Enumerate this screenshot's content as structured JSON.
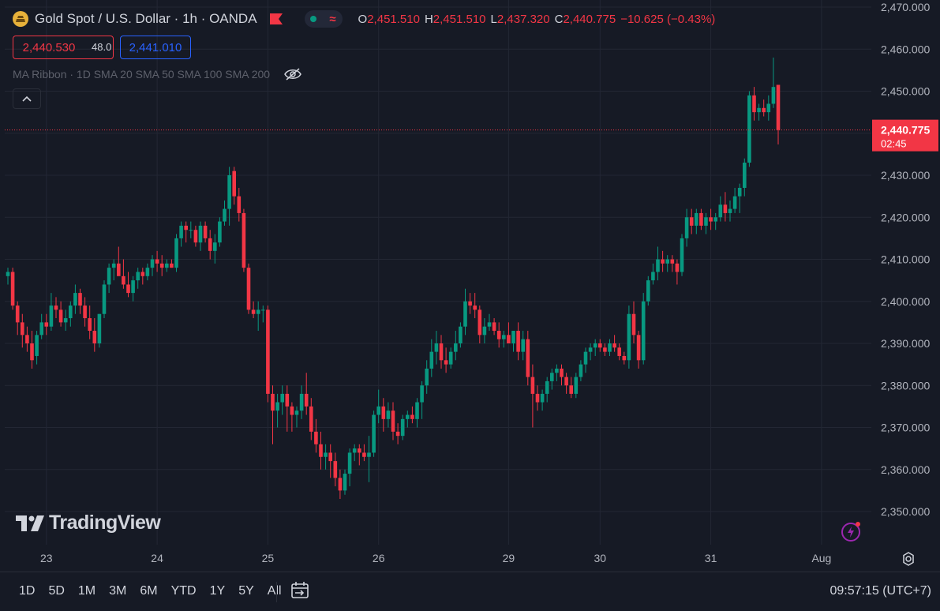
{
  "header": {
    "symbol_title": "Gold Spot / U.S. Dollar · 1h · OANDA",
    "ohlc": {
      "o_label": "O",
      "o_value": "2,451.510",
      "h_label": "H",
      "h_value": "2,451.510",
      "l_label": "L",
      "l_value": "2,437.320",
      "c_label": "C",
      "c_value": "2,440.775",
      "change": "−10.625 (−0.43%)"
    }
  },
  "trade": {
    "sell_price": "2,440.530",
    "spread": "48.0",
    "buy_price": "2,441.010"
  },
  "indicator": {
    "label": "MA Ribbon · 1D SMA 20 SMA 50 SMA 100 SMA 200"
  },
  "branding": {
    "logo_text": "TradingView"
  },
  "current_price": {
    "value": "2,440.775",
    "countdown": "02:45"
  },
  "toolbar": {
    "ranges": [
      "1D",
      "5D",
      "1M",
      "3M",
      "6M",
      "YTD",
      "1Y",
      "5Y",
      "All"
    ],
    "clock": "09:57:15 (UTC+7)"
  },
  "colors": {
    "background": "#161a25",
    "up": "#089981",
    "down": "#f23645",
    "grid": "#232734",
    "text": "#d1d4dc",
    "accent_buy": "#2962ff"
  },
  "chart_data": {
    "type": "candlestick",
    "title": "Gold Spot / U.S. Dollar · 1h · OANDA",
    "xlabel": "",
    "ylabel": "",
    "ylim": [
      2346,
      2471
    ],
    "y_ticks": [
      2470,
      2460,
      2450,
      2440,
      2430,
      2420,
      2410,
      2400,
      2390,
      2380,
      2370,
      2360,
      2350
    ],
    "y_tick_labels": [
      "2,470.000",
      "2,460.000",
      "2,450.000",
      "2,440.000",
      "2,430.000",
      "2,420.000",
      "2,410.000",
      "2,400.000",
      "2,390.000",
      "2,380.000",
      "2,370.000",
      "2,360.000",
      "2,350.000"
    ],
    "x_tick_labels": [
      {
        "label": "23",
        "bar": 8
      },
      {
        "label": "24",
        "bar": 31
      },
      {
        "label": "25",
        "bar": 54
      },
      {
        "label": "26",
        "bar": 77
      },
      {
        "label": "29",
        "bar": 104
      },
      {
        "label": "30",
        "bar": 123
      },
      {
        "label": "31",
        "bar": 146
      },
      {
        "label": "Aug",
        "bar": 169
      }
    ],
    "last_price": 2440.775,
    "grid": true,
    "series": [
      {
        "ohlc": [
          [
            2406,
            2408,
            2404,
            2407
          ],
          [
            2407,
            2408,
            2398,
            2399
          ],
          [
            2399,
            2400,
            2392,
            2395
          ],
          [
            2395,
            2397,
            2389,
            2392
          ],
          [
            2392,
            2394,
            2388,
            2390
          ],
          [
            2390,
            2393,
            2384,
            2386
          ],
          [
            2387,
            2393,
            2385,
            2392
          ],
          [
            2392,
            2397,
            2391,
            2395
          ],
          [
            2395,
            2397,
            2392,
            2394
          ],
          [
            2394,
            2402,
            2393,
            2399
          ],
          [
            2399,
            2401,
            2396,
            2398
          ],
          [
            2398,
            2400,
            2394,
            2395
          ],
          [
            2395,
            2398,
            2393,
            2396
          ],
          [
            2396,
            2400,
            2394,
            2399
          ],
          [
            2399,
            2404,
            2397,
            2402
          ],
          [
            2402,
            2403,
            2397,
            2399
          ],
          [
            2399,
            2401,
            2394,
            2396
          ],
          [
            2396,
            2399,
            2391,
            2393
          ],
          [
            2393,
            2396,
            2388,
            2390
          ],
          [
            2390,
            2397,
            2389,
            2397
          ],
          [
            2397,
            2405,
            2396,
            2404
          ],
          [
            2404,
            2409,
            2402,
            2408
          ],
          [
            2408,
            2410,
            2405,
            2409
          ],
          [
            2409,
            2413,
            2407,
            2406
          ],
          [
            2406,
            2410,
            2403,
            2404
          ],
          [
            2404,
            2407,
            2401,
            2402
          ],
          [
            2402,
            2406,
            2400,
            2405
          ],
          [
            2405,
            2408,
            2403,
            2407
          ],
          [
            2407,
            2408,
            2404,
            2406
          ],
          [
            2406,
            2409,
            2405,
            2408
          ],
          [
            2408,
            2411,
            2406,
            2410
          ],
          [
            2410,
            2412,
            2407,
            2409
          ],
          [
            2409,
            2411,
            2406,
            2408
          ],
          [
            2408,
            2410,
            2407,
            2409
          ],
          [
            2409,
            2410,
            2408,
            2408
          ],
          [
            2408,
            2416,
            2407,
            2415
          ],
          [
            2415,
            2419,
            2413,
            2418
          ],
          [
            2418,
            2419,
            2414,
            2417
          ],
          [
            2417,
            2419,
            2415,
            2417
          ],
          [
            2417,
            2418,
            2413,
            2414
          ],
          [
            2414,
            2419,
            2412,
            2418
          ],
          [
            2418,
            2419,
            2414,
            2415
          ],
          [
            2415,
            2417,
            2410,
            2412
          ],
          [
            2412,
            2416,
            2409,
            2414
          ],
          [
            2414,
            2420,
            2413,
            2419
          ],
          [
            2419,
            2424,
            2418,
            2422
          ],
          [
            2422,
            2432,
            2418,
            2430
          ],
          [
            2431,
            2432,
            2423,
            2425
          ],
          [
            2425,
            2427,
            2419,
            2421
          ],
          [
            2421,
            2422,
            2407,
            2408
          ],
          [
            2408,
            2409,
            2397,
            2398
          ],
          [
            2398,
            2400,
            2396,
            2397
          ],
          [
            2397,
            2400,
            2393,
            2398
          ],
          [
            2398,
            2399,
            2395,
            2398
          ],
          [
            2398,
            2399,
            2376,
            2378
          ],
          [
            2378,
            2380,
            2366,
            2374
          ],
          [
            2374,
            2378,
            2370,
            2376
          ],
          [
            2376,
            2380,
            2373,
            2378
          ],
          [
            2378,
            2380,
            2369,
            2375
          ],
          [
            2375,
            2376,
            2369,
            2373
          ],
          [
            2373,
            2375,
            2370,
            2374
          ],
          [
            2374,
            2380,
            2372,
            2378
          ],
          [
            2378,
            2383,
            2373,
            2375
          ],
          [
            2375,
            2377,
            2367,
            2369
          ],
          [
            2369,
            2372,
            2364,
            2366
          ],
          [
            2366,
            2369,
            2360,
            2363
          ],
          [
            2363,
            2366,
            2360,
            2364
          ],
          [
            2364,
            2366,
            2358,
            2362
          ],
          [
            2362,
            2364,
            2356,
            2358
          ],
          [
            2358,
            2360,
            2353,
            2355
          ],
          [
            2355,
            2360,
            2354,
            2359
          ],
          [
            2359,
            2365,
            2356,
            2364
          ],
          [
            2364,
            2366,
            2362,
            2365
          ],
          [
            2365,
            2366,
            2361,
            2364
          ],
          [
            2364,
            2366,
            2362,
            2363
          ],
          [
            2363,
            2368,
            2357,
            2364
          ],
          [
            2364,
            2374,
            2363,
            2373
          ],
          [
            2373,
            2379,
            2371,
            2375
          ],
          [
            2375,
            2377,
            2369,
            2372
          ],
          [
            2372,
            2376,
            2370,
            2374
          ],
          [
            2374,
            2376,
            2367,
            2369
          ],
          [
            2369,
            2371,
            2366,
            2368
          ],
          [
            2368,
            2373,
            2367,
            2372
          ],
          [
            2372,
            2374,
            2370,
            2373
          ],
          [
            2373,
            2375,
            2371,
            2372
          ],
          [
            2372,
            2377,
            2370,
            2376
          ],
          [
            2376,
            2381,
            2372,
            2380
          ],
          [
            2380,
            2386,
            2378,
            2384
          ],
          [
            2384,
            2391,
            2382,
            2388
          ],
          [
            2388,
            2393,
            2385,
            2390
          ],
          [
            2390,
            2392,
            2384,
            2386
          ],
          [
            2386,
            2389,
            2383,
            2385
          ],
          [
            2385,
            2389,
            2384,
            2388
          ],
          [
            2388,
            2393,
            2386,
            2390
          ],
          [
            2390,
            2395,
            2389,
            2394
          ],
          [
            2394,
            2403,
            2392,
            2400
          ],
          [
            2400,
            2402,
            2397,
            2399
          ],
          [
            2399,
            2402,
            2396,
            2398
          ],
          [
            2398,
            2399,
            2390,
            2392
          ],
          [
            2392,
            2396,
            2390,
            2394
          ],
          [
            2394,
            2397,
            2393,
            2395
          ],
          [
            2395,
            2396,
            2392,
            2393
          ],
          [
            2393,
            2395,
            2389,
            2391
          ],
          [
            2391,
            2393,
            2389,
            2392
          ],
          [
            2392,
            2395,
            2390,
            2390
          ],
          [
            2390,
            2393,
            2388,
            2393
          ],
          [
            2393,
            2395,
            2386,
            2388
          ],
          [
            2388,
            2393,
            2386,
            2391
          ],
          [
            2391,
            2393,
            2380,
            2382
          ],
          [
            2382,
            2385,
            2370,
            2378
          ],
          [
            2378,
            2380,
            2374,
            2376
          ],
          [
            2376,
            2379,
            2374,
            2378
          ],
          [
            2378,
            2382,
            2376,
            2381
          ],
          [
            2381,
            2384,
            2379,
            2383
          ],
          [
            2383,
            2385,
            2381,
            2384
          ],
          [
            2384,
            2385,
            2380,
            2382
          ],
          [
            2382,
            2383,
            2378,
            2380
          ],
          [
            2380,
            2382,
            2377,
            2378
          ],
          [
            2378,
            2383,
            2377,
            2382
          ],
          [
            2382,
            2386,
            2381,
            2385
          ],
          [
            2385,
            2389,
            2383,
            2388
          ],
          [
            2388,
            2390,
            2386,
            2389
          ],
          [
            2389,
            2391,
            2387,
            2390
          ],
          [
            2390,
            2391,
            2388,
            2389
          ],
          [
            2389,
            2390,
            2387,
            2388
          ],
          [
            2388,
            2391,
            2387,
            2390
          ],
          [
            2390,
            2392,
            2388,
            2389
          ],
          [
            2389,
            2390,
            2386,
            2387
          ],
          [
            2387,
            2388,
            2385,
            2386
          ],
          [
            2386,
            2399,
            2384,
            2397
          ],
          [
            2397,
            2400,
            2390,
            2392
          ],
          [
            2392,
            2393,
            2384,
            2386
          ],
          [
            2386,
            2402,
            2385,
            2400
          ],
          [
            2400,
            2406,
            2399,
            2405
          ],
          [
            2405,
            2409,
            2404,
            2407
          ],
          [
            2407,
            2413,
            2405,
            2410
          ],
          [
            2410,
            2412,
            2407,
            2409
          ],
          [
            2409,
            2411,
            2407,
            2410
          ],
          [
            2410,
            2411,
            2407,
            2409
          ],
          [
            2409,
            2410,
            2404,
            2407
          ],
          [
            2407,
            2416,
            2406,
            2415
          ],
          [
            2415,
            2422,
            2413,
            2420
          ],
          [
            2420,
            2422,
            2416,
            2418
          ],
          [
            2418,
            2422,
            2416,
            2421
          ],
          [
            2421,
            2422,
            2417,
            2418
          ],
          [
            2418,
            2421,
            2416,
            2420
          ],
          [
            2420,
            2422,
            2417,
            2419
          ],
          [
            2419,
            2421,
            2417,
            2420
          ],
          [
            2420,
            2425,
            2419,
            2423
          ],
          [
            2423,
            2426,
            2419,
            2421
          ],
          [
            2421,
            2424,
            2419,
            2422
          ],
          [
            2422,
            2427,
            2421,
            2425
          ],
          [
            2425,
            2428,
            2421,
            2427
          ],
          [
            2427,
            2434,
            2425,
            2433
          ],
          [
            2433,
            2450,
            2432,
            2449
          ],
          [
            2449,
            2451,
            2443,
            2445
          ],
          [
            2445,
            2447,
            2443,
            2446
          ],
          [
            2446,
            2448,
            2444,
            2445
          ],
          [
            2445,
            2449,
            2443,
            2447
          ],
          [
            2447,
            2458,
            2446,
            2451
          ],
          [
            2451.51,
            2451.51,
            2437.32,
            2440.775
          ]
        ]
      }
    ]
  }
}
